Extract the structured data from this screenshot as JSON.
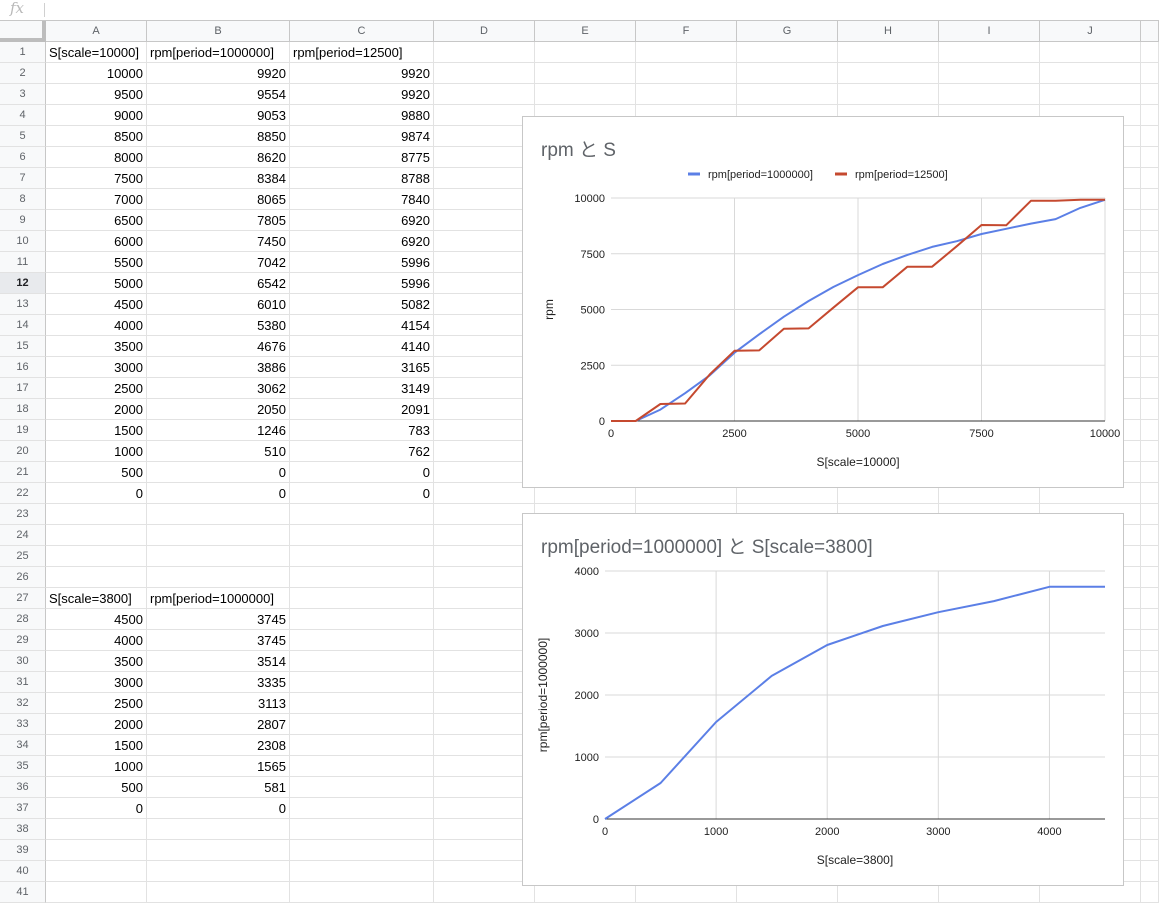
{
  "formula_bar": {
    "icon": "fx-icon",
    "value": ""
  },
  "columns": [
    "A",
    "B",
    "C",
    "D",
    "E",
    "F",
    "G",
    "H",
    "I",
    "J"
  ],
  "row_count": 41,
  "selected_row": 12,
  "cells": {
    "1": [
      "S[scale=10000]",
      "rpm[period=1000000]",
      "rpm[period=12500]"
    ],
    "2": [
      "10000",
      "9920",
      "9920"
    ],
    "3": [
      "9500",
      "9554",
      "9920"
    ],
    "4": [
      "9000",
      "9053",
      "9880"
    ],
    "5": [
      "8500",
      "8850",
      "9874"
    ],
    "6": [
      "8000",
      "8620",
      "8775"
    ],
    "7": [
      "7500",
      "8384",
      "8788"
    ],
    "8": [
      "7000",
      "8065",
      "7840"
    ],
    "9": [
      "6500",
      "7805",
      "6920"
    ],
    "10": [
      "6000",
      "7450",
      "6920"
    ],
    "11": [
      "5500",
      "7042",
      "5996"
    ],
    "12": [
      "5000",
      "6542",
      "5996"
    ],
    "13": [
      "4500",
      "6010",
      "5082"
    ],
    "14": [
      "4000",
      "5380",
      "4154"
    ],
    "15": [
      "3500",
      "4676",
      "4140"
    ],
    "16": [
      "3000",
      "3886",
      "3165"
    ],
    "17": [
      "2500",
      "3062",
      "3149"
    ],
    "18": [
      "2000",
      "2050",
      "2091"
    ],
    "19": [
      "1500",
      "1246",
      "783"
    ],
    "20": [
      "1000",
      "510",
      "762"
    ],
    "21": [
      "500",
      "0",
      "0"
    ],
    "22": [
      "0",
      "0",
      "0"
    ],
    "27": [
      "S[scale=3800]",
      "rpm[period=1000000]"
    ],
    "28": [
      "4500",
      "3745"
    ],
    "29": [
      "4000",
      "3745"
    ],
    "30": [
      "3500",
      "3514"
    ],
    "31": [
      "3000",
      "3335"
    ],
    "32": [
      "2500",
      "3113"
    ],
    "33": [
      "2000",
      "2807"
    ],
    "34": [
      "1500",
      "2308"
    ],
    "35": [
      "1000",
      "1565"
    ],
    "36": [
      "500",
      "581"
    ],
    "37": [
      "0",
      "0"
    ]
  },
  "chart_data": [
    {
      "type": "line",
      "title": "rpm と S",
      "xlabel": "S[scale=10000]",
      "ylabel": "rpm",
      "xlim": [
        0,
        10000
      ],
      "ylim": [
        0,
        10000
      ],
      "xticks": [
        0,
        2500,
        5000,
        7500,
        10000
      ],
      "yticks": [
        0,
        2500,
        5000,
        7500,
        10000
      ],
      "grid": true,
      "legend": "top",
      "x": [
        0,
        500,
        1000,
        1500,
        2000,
        2500,
        3000,
        3500,
        4000,
        4500,
        5000,
        5500,
        6000,
        6500,
        7000,
        7500,
        8000,
        8500,
        9000,
        9500,
        10000
      ],
      "series": [
        {
          "name": "rpm[period=1000000]",
          "color": "#5b7fe6",
          "values": [
            0,
            0,
            510,
            1246,
            2050,
            3062,
            3886,
            4676,
            5380,
            6010,
            6542,
            7042,
            7450,
            7805,
            8065,
            8384,
            8620,
            8850,
            9053,
            9554,
            9920
          ]
        },
        {
          "name": "rpm[period=12500]",
          "color": "#c5492f",
          "values": [
            0,
            0,
            762,
            783,
            2091,
            3149,
            3165,
            4140,
            4154,
            5082,
            5996,
            5996,
            6920,
            6920,
            7840,
            8788,
            8775,
            9874,
            9880,
            9920,
            9920
          ]
        }
      ]
    },
    {
      "type": "line",
      "title": "rpm[period=1000000] と S[scale=3800]",
      "xlabel": "S[scale=3800]",
      "ylabel": "rpm[period=1000000]",
      "xlim": [
        0,
        4500
      ],
      "ylim": [
        0,
        4000
      ],
      "xticks": [
        0,
        1000,
        2000,
        3000,
        4000
      ],
      "yticks": [
        0,
        1000,
        2000,
        3000,
        4000
      ],
      "grid": true,
      "x": [
        0,
        500,
        1000,
        1500,
        2000,
        2500,
        3000,
        3500,
        4000,
        4500
      ],
      "series": [
        {
          "color": "#5b7fe6",
          "values": [
            0,
            581,
            1565,
            2308,
            2807,
            3113,
            3335,
            3514,
            3745,
            3745
          ]
        }
      ]
    }
  ]
}
